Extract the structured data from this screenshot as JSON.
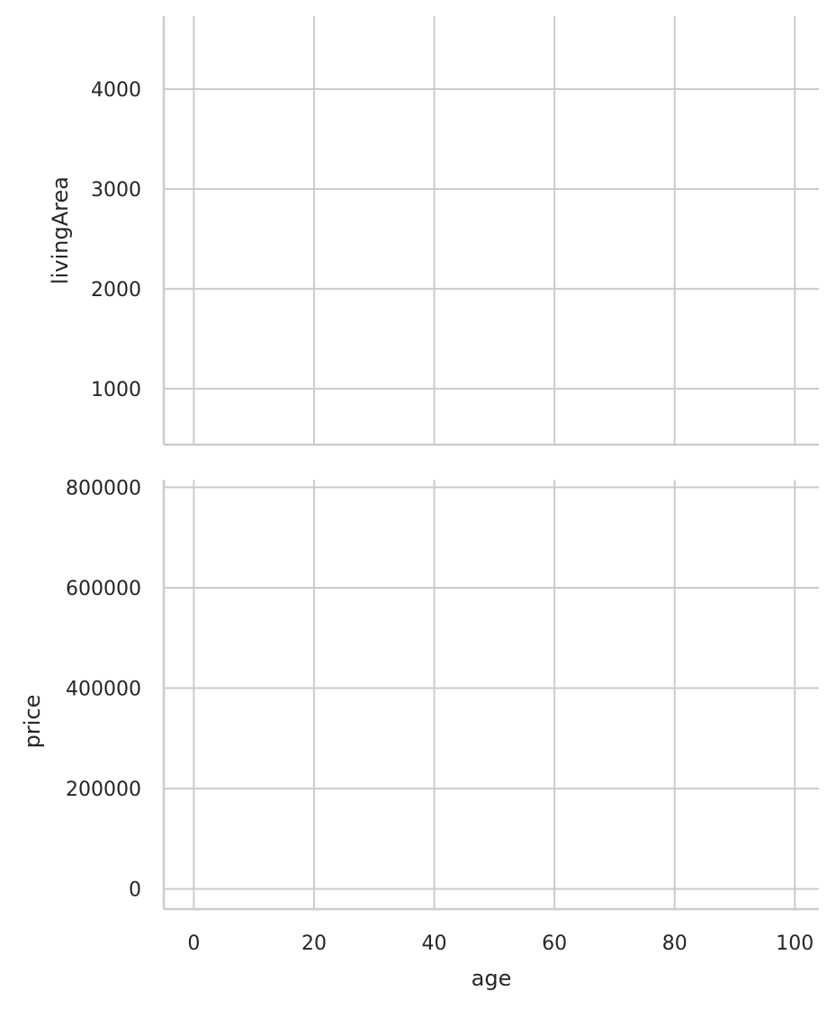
{
  "chart_data": {
    "type": "scatter",
    "grid": true,
    "x": {
      "label": "age",
      "range": [
        -5,
        104
      ],
      "ticks": [
        0,
        20,
        40,
        60,
        80,
        100
      ],
      "tick_labels": [
        "0",
        "20",
        "40",
        "60",
        "80",
        "100"
      ]
    },
    "panels": [
      {
        "ylabel": "livingArea",
        "ylim": [
          440,
          4730
        ],
        "yticks": [
          1000,
          2000,
          3000,
          4000
        ],
        "ytick_labels": [
          "1000",
          "2000",
          "3000",
          "4000"
        ],
        "points": []
      },
      {
        "ylabel": "price",
        "ylim": [
          -40000,
          815000
        ],
        "yticks": [
          0,
          200000,
          400000,
          600000,
          800000
        ],
        "ytick_labels": [
          "0",
          "200000",
          "400000",
          "600000",
          "800000"
        ],
        "points": []
      }
    ]
  }
}
